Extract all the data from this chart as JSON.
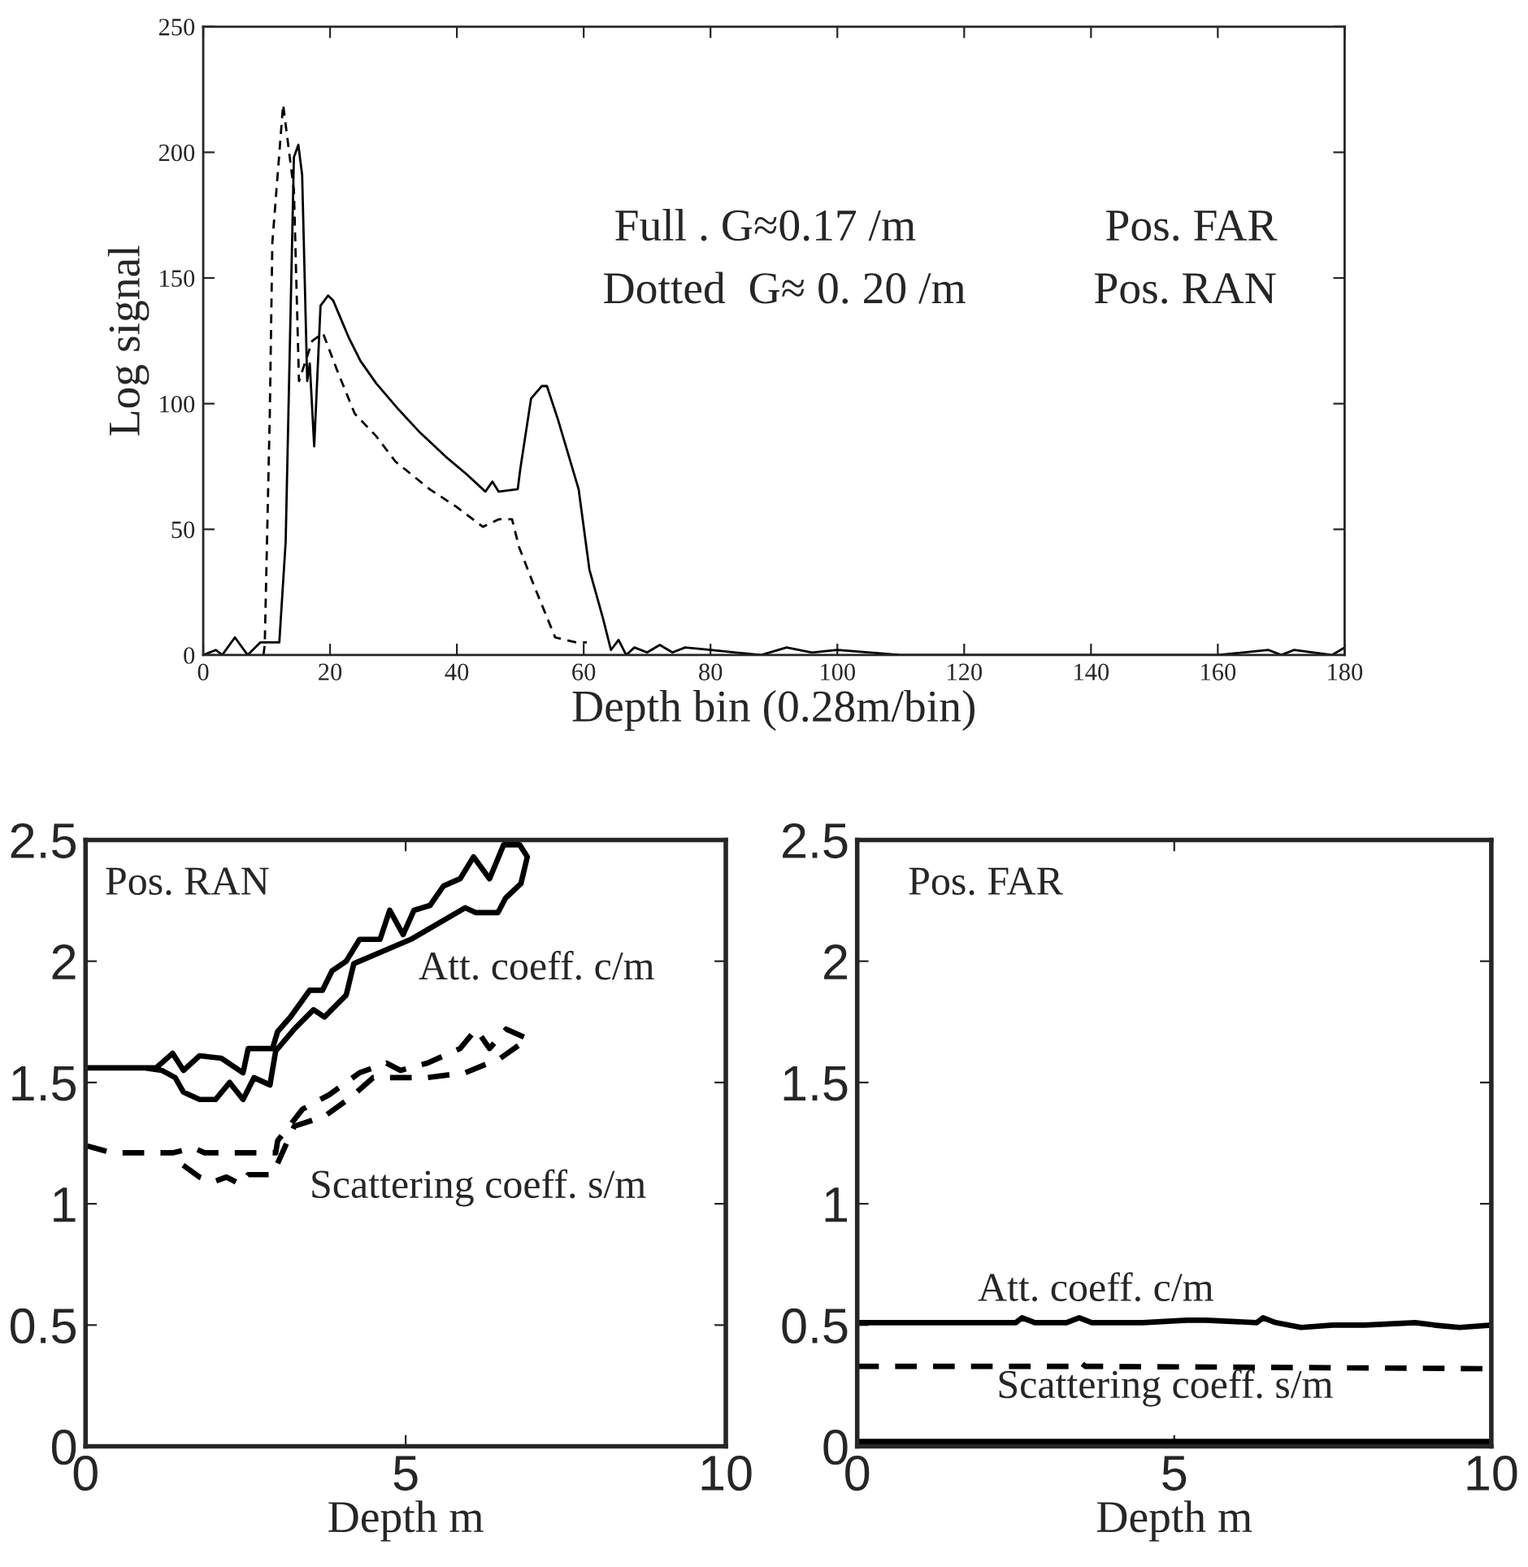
{
  "chart_data": [
    {
      "type": "line",
      "xlabel": "Depth bin (0.28m/bin)",
      "ylabel": "Log signal",
      "xlim": [
        0,
        180
      ],
      "ylim": [
        0,
        250
      ],
      "xticks": [
        0,
        20,
        40,
        60,
        80,
        100,
        120,
        140,
        160,
        180
      ],
      "yticks": [
        0,
        50,
        100,
        150,
        200,
        250
      ],
      "grid": false,
      "legend": false,
      "annotations": [
        "Full . G≈0.17 /m",
        "Dotted  G≈ 0. 20 /m",
        "Pos. FAR",
        "Pos. RAN"
      ],
      "series": [
        {
          "color": "#000000",
          "line_style": "solid",
          "x": [
            0,
            2,
            3,
            5,
            7,
            9,
            12,
            13,
            14.3,
            15,
            15.6,
            16.4,
            16.8,
            17.5,
            18.5,
            19.7,
            20.5,
            23,
            24.8,
            27.3,
            30.7,
            34,
            38.2,
            41.5,
            44.5,
            45.6,
            46.6,
            49.6,
            50,
            51.7,
            53.4,
            54.2,
            55.9,
            59.2,
            60.9,
            63,
            64.3,
            65.5,
            66.7,
            68,
            70,
            72,
            74,
            76,
            80,
            84,
            88,
            92,
            96,
            100,
            110,
            120,
            160,
            168,
            170,
            172,
            178,
            180
          ],
          "values": [
            0,
            2,
            0,
            7,
            0,
            5,
            5,
            45,
            198,
            203,
            191,
            109,
            116,
            83,
            139,
            143,
            141,
            126,
            117,
            108,
            98,
            89,
            79,
            72,
            65,
            69,
            65,
            66,
            74,
            102,
            107,
            107,
            94,
            66,
            34,
            15,
            2,
            6,
            0,
            3,
            1,
            4,
            1,
            3,
            2,
            1,
            0,
            3,
            1,
            2,
            0,
            0,
            0,
            2,
            0,
            2,
            0,
            3
          ]
        },
        {
          "color": "#000000",
          "line_style": "dashed",
          "x": [
            9.5,
            9.7,
            10.5,
            10.9,
            12.6,
            14.3,
            15.1,
            17.2,
            18.9,
            21,
            23.9,
            27.3,
            30.3,
            35.7,
            39.9,
            44.1,
            46.6,
            48.7,
            49.8,
            52.1,
            54.2,
            55.5,
            58.8,
            60.5
          ],
          "values": [
            0,
            4,
            96,
            164,
            219,
            185,
            109,
            125,
            128,
            114,
            96,
            87,
            77,
            66,
            59,
            51,
            54,
            54,
            43,
            28,
            15,
            7,
            5,
            5
          ]
        }
      ]
    },
    {
      "type": "line",
      "xlabel": "Depth m",
      "xlim": [
        0,
        10
      ],
      "ylim": [
        0,
        2.5
      ],
      "xticks": [
        0,
        5,
        10
      ],
      "yticks": [
        0,
        0.5,
        1,
        1.5,
        2,
        2.5
      ],
      "grid": false,
      "legend": false,
      "annotations": [
        "Pos. RAN",
        "Att. coeff. c/m",
        "Scattering coeff. s/m"
      ],
      "series": [
        {
          "color": "#000000",
          "line_style": "solid",
          "x": [
            0,
            1.1,
            1.36,
            1.53,
            1.78,
            2.12,
            2.46,
            2.54,
            2.92,
            3.0,
            3.2,
            3.5,
            3.7,
            3.85,
            4.07,
            4.28,
            4.6,
            4.75,
            4.96,
            5.13,
            5.38,
            5.59,
            5.85,
            6.06,
            6.31,
            6.53,
            6.78,
            6.9,
            6.8,
            6.56,
            6.44,
            6.1,
            5.93,
            5.08,
            4.19,
            4.07,
            3.73,
            3.56,
            3.26,
            2.97,
            2.88,
            2.63,
            2.46,
            2.25,
            2.03,
            1.78,
            1.53,
            1.4,
            1.19,
            0.93
          ],
          "values": [
            1.56,
            1.56,
            1.62,
            1.55,
            1.61,
            1.6,
            1.54,
            1.64,
            1.64,
            1.71,
            1.77,
            1.88,
            1.88,
            1.96,
            2.0,
            2.09,
            2.09,
            2.21,
            2.11,
            2.21,
            2.23,
            2.31,
            2.34,
            2.43,
            2.34,
            2.48,
            2.48,
            2.43,
            2.32,
            2.26,
            2.2,
            2.2,
            2.22,
            2.09,
            1.99,
            1.86,
            1.77,
            1.8,
            1.72,
            1.63,
            1.49,
            1.52,
            1.43,
            1.5,
            1.43,
            1.43,
            1.46,
            1.52,
            1.55,
            1.56
          ]
        },
        {
          "color": "#000000",
          "line_style": "dashed",
          "x": [
            0,
            0.42,
            1.36,
            1.69,
            1.86,
            2.97,
            3.0,
            3.39,
            3.81,
            4.28,
            4.7,
            4.92,
            5.34,
            5.85,
            6.1,
            6.31,
            6.57,
            6.91,
            6.48,
            5.93,
            5.34,
            4.49,
            4.15,
            3.73,
            3.26,
            2.92,
            2.54,
            2.42,
            2.2,
            1.99,
            1.78,
            1.36
          ],
          "values": [
            1.24,
            1.21,
            1.21,
            1.23,
            1.21,
            1.21,
            1.26,
            1.39,
            1.45,
            1.54,
            1.58,
            1.55,
            1.58,
            1.64,
            1.72,
            1.64,
            1.72,
            1.68,
            1.6,
            1.54,
            1.52,
            1.52,
            1.44,
            1.36,
            1.32,
            1.12,
            1.12,
            1.08,
            1.11,
            1.09,
            1.11,
            1.19
          ]
        }
      ]
    },
    {
      "type": "line",
      "xlabel": "Depth m",
      "xlim": [
        0,
        10
      ],
      "ylim": [
        0,
        2.5
      ],
      "xticks": [
        0,
        5,
        10
      ],
      "yticks": [
        0,
        0.5,
        1,
        1.5,
        2,
        2.5
      ],
      "grid": false,
      "legend": false,
      "annotations": [
        "Pos. FAR",
        "Att. coeff. c/m",
        "Scattering coeff. s/m"
      ],
      "series": [
        {
          "color": "#000000",
          "line_style": "solid",
          "x": [
            0,
            2.5,
            2.6,
            2.8,
            3.3,
            3.5,
            3.7,
            4.5,
            5.2,
            5.5,
            6.3,
            6.4,
            6.6,
            7.0,
            7.5,
            8.0,
            8.8,
            9.1,
            9.5,
            10
          ],
          "values": [
            0.51,
            0.51,
            0.53,
            0.51,
            0.51,
            0.53,
            0.51,
            0.51,
            0.52,
            0.52,
            0.51,
            0.53,
            0.51,
            0.49,
            0.5,
            0.5,
            0.51,
            0.5,
            0.49,
            0.5
          ]
        },
        {
          "color": "#000000",
          "line_style": "dashed",
          "x": [
            0,
            3.4,
            3.5,
            3.6,
            10
          ],
          "values": [
            0.33,
            0.33,
            0.35,
            0.33,
            0.32
          ]
        },
        {
          "color": "#000000",
          "line_style": "solid",
          "x": [
            0,
            10
          ],
          "values": [
            0.02,
            0.02
          ]
        }
      ]
    }
  ]
}
